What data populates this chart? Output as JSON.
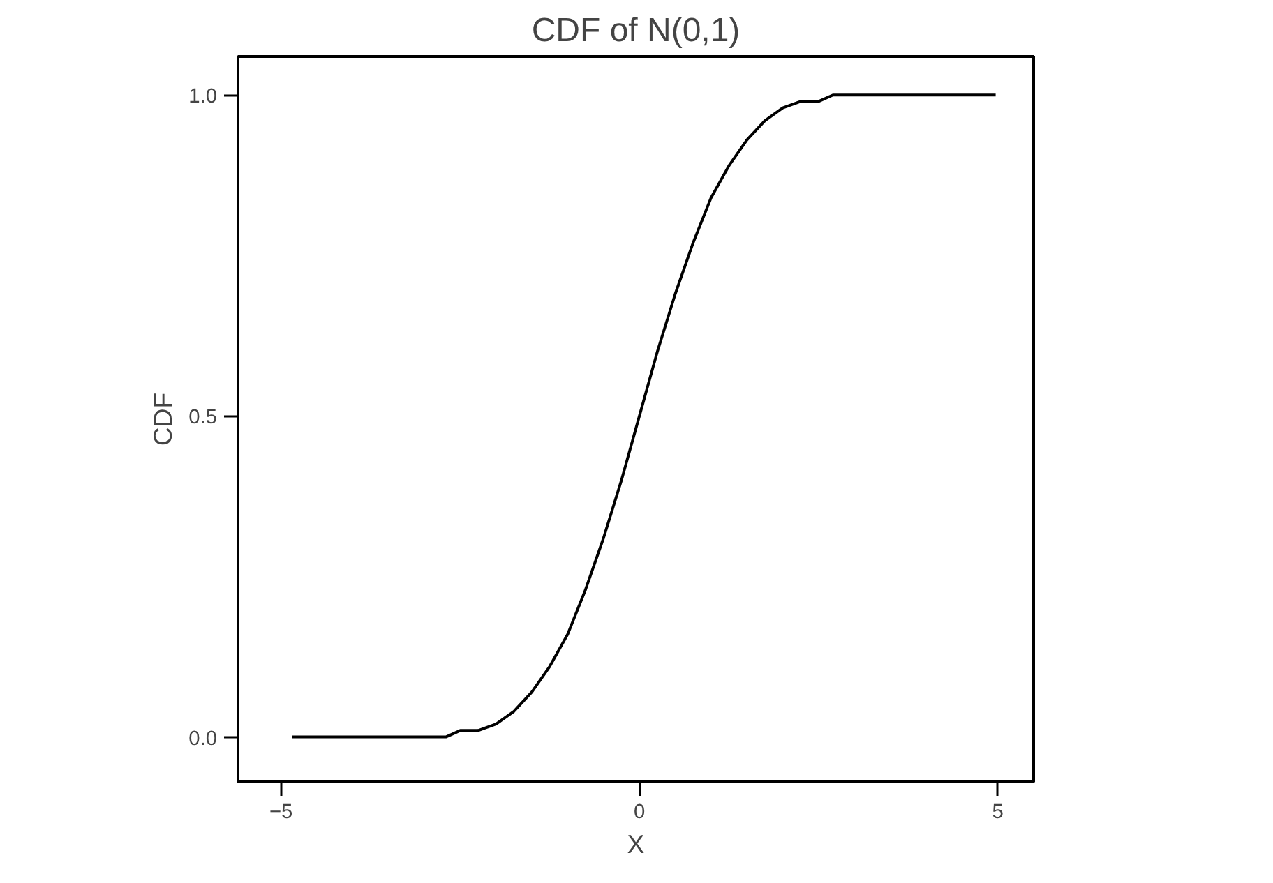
{
  "chart_data": {
    "type": "line",
    "title": "CDF of N(0,1)",
    "xlabel": "X",
    "ylabel": "CDF",
    "x": [
      -4.85,
      -2.7,
      -2.5,
      -2.25,
      -2.0,
      -1.75,
      -1.5,
      -1.25,
      -1.0,
      -0.75,
      -0.5,
      -0.25,
      0.0,
      0.25,
      0.5,
      0.75,
      1.0,
      1.25,
      1.5,
      1.75,
      2.0,
      2.25,
      2.5,
      2.7,
      4.97
    ],
    "series": [
      {
        "color": "#000000",
        "values": [
          0.0,
          0.0,
          0.01,
          0.01,
          0.02,
          0.04,
          0.07,
          0.11,
          0.16,
          0.23,
          0.31,
          0.4,
          0.5,
          0.6,
          0.69,
          0.77,
          0.84,
          0.89,
          0.93,
          0.96,
          0.98,
          0.99,
          0.99,
          1.0,
          1.0
        ]
      }
    ],
    "xlim": [
      -5.6,
      5.5
    ],
    "ylim": [
      -0.07,
      1.06
    ],
    "xticks": [
      -5,
      0,
      5
    ],
    "yticks": [
      {
        "value": 0,
        "label": "0.0"
      },
      {
        "value": 0.5,
        "label": "0.5"
      },
      {
        "value": 1,
        "label": "1.0"
      }
    ],
    "grid": false,
    "marker": "none",
    "line_style": "solid"
  }
}
